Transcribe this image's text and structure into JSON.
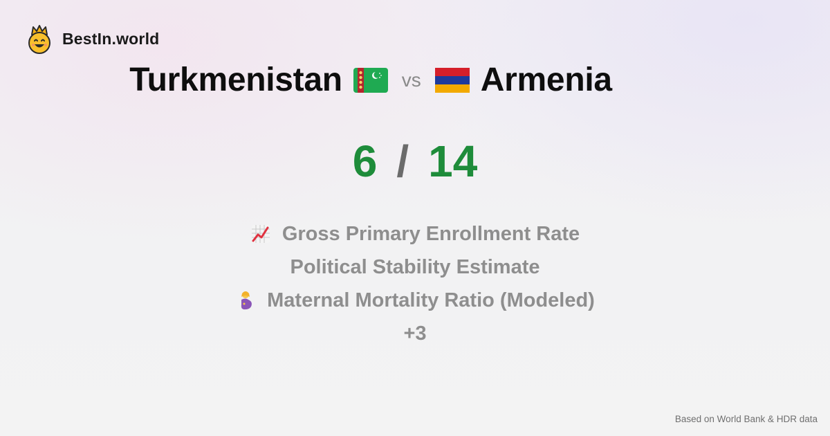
{
  "brand": {
    "name": "BestIn.world",
    "logo_icon": "crowned-smiley-icon"
  },
  "comparison": {
    "country_a": {
      "name": "Turkmenistan",
      "flag_icon": "turkmenistan-flag-icon"
    },
    "vs_label": "vs",
    "country_b": {
      "name": "Armenia",
      "flag_icon": "armenia-flag-icon"
    }
  },
  "score": {
    "a": "6",
    "separator": "/",
    "b": "14"
  },
  "metrics": [
    {
      "label": "Gross Primary Enrollment Rate",
      "icon": "chart-increasing-icon"
    },
    {
      "label": "Political Stability Estimate",
      "icon": ""
    },
    {
      "label": "Maternal Mortality Ratio (Modeled)",
      "icon": "pregnant-woman-icon"
    }
  ],
  "more_label": "+3",
  "footer": {
    "source": "Based on World Bank & HDR data"
  },
  "colors": {
    "score_green": "#1e8c3a",
    "muted_gray": "#8e8e8e"
  }
}
